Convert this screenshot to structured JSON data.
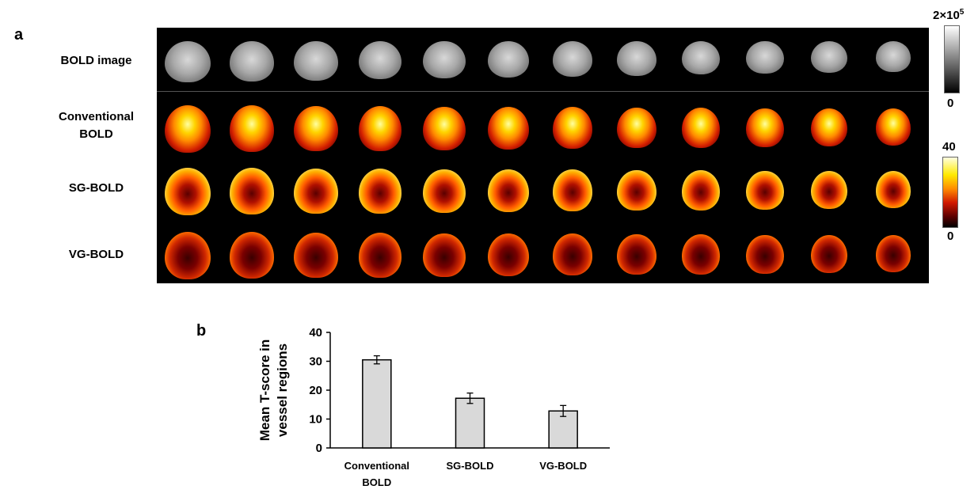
{
  "panel_a": {
    "label": "a",
    "rows": [
      {
        "label_lines": [
          "BOLD image"
        ]
      },
      {
        "label_lines": [
          "Conventional",
          "BOLD"
        ]
      },
      {
        "label_lines": [
          "SG-BOLD"
        ]
      },
      {
        "label_lines": [
          "VG-BOLD"
        ]
      }
    ],
    "colorbar_gray": {
      "max": "2×10",
      "max_exp": "5",
      "min": "0"
    },
    "colorbar_heat": {
      "max": "40",
      "min": "0"
    }
  },
  "panel_b": {
    "label": "b"
  },
  "chart_data": {
    "type": "bar",
    "categories": [
      "Conventional BOLD",
      "SG-BOLD",
      "VG-BOLD"
    ],
    "category_lines": [
      [
        "Conventional",
        "BOLD"
      ],
      [
        "SG-BOLD"
      ],
      [
        "VG-BOLD"
      ]
    ],
    "values": [
      30.5,
      17.2,
      12.8
    ],
    "errors": [
      1.4,
      1.8,
      1.9
    ],
    "ylabel_lines": [
      "Mean T-score in",
      "vessel regions"
    ],
    "xlabel": "",
    "ylim": [
      0,
      40
    ],
    "yticks": [
      0,
      10,
      20,
      30,
      40
    ],
    "bar_color": "#d9d9d9",
    "edge_color": "#000000"
  }
}
